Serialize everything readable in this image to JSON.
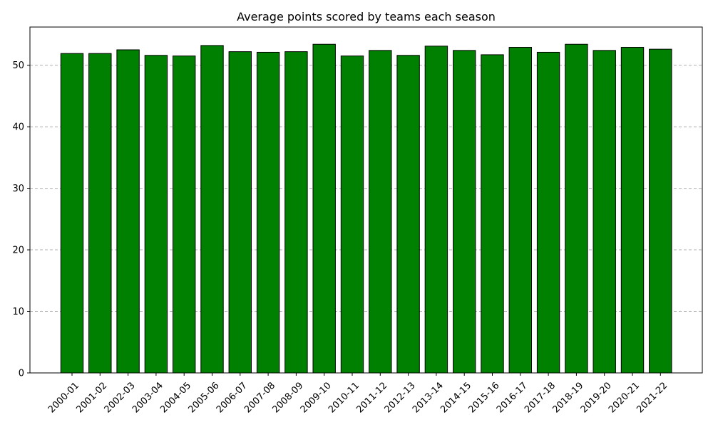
{
  "chart_data": {
    "type": "bar",
    "title": "Average points scored by teams each season",
    "xlabel": "",
    "ylabel": "",
    "categories": [
      "2000-01",
      "2001-02",
      "2002-03",
      "2003-04",
      "2004-05",
      "2005-06",
      "2006-07",
      "2007-08",
      "2008-09",
      "2009-10",
      "2010-11",
      "2011-12",
      "2012-13",
      "2013-14",
      "2014-15",
      "2015-16",
      "2016-17",
      "2017-18",
      "2018-19",
      "2019-20",
      "2020-21",
      "2021-22"
    ],
    "values": [
      51.9,
      51.9,
      52.5,
      51.6,
      51.5,
      53.2,
      52.2,
      52.1,
      52.2,
      53.4,
      51.5,
      52.4,
      51.6,
      53.1,
      52.4,
      51.7,
      52.9,
      52.1,
      53.4,
      52.4,
      52.9,
      52.6
    ],
    "ylim": [
      0,
      56.2
    ],
    "yticks": [
      0,
      10,
      20,
      30,
      40,
      50
    ],
    "grid": "y-dashed",
    "bar_color": "#008000",
    "edge_color": "#000000",
    "x_tick_rotation": "45"
  }
}
